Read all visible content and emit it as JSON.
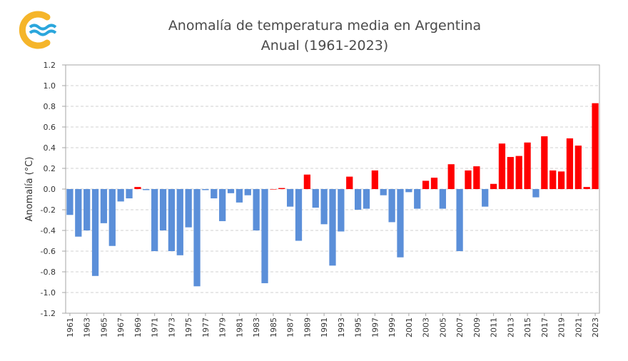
{
  "chart_data": {
    "type": "bar",
    "title": "Anomalía de temperatura media en Argentina",
    "subtitle": "Anual (1961-2023)",
    "xlabel": "",
    "ylabel": "Anomalía (°C)",
    "ylim": [
      -1.2,
      1.2
    ],
    "yticks": [
      1.2,
      1.0,
      0.8,
      0.6,
      0.4,
      0.2,
      0.0,
      -0.2,
      -0.4,
      -0.6,
      -0.8,
      -1.0,
      -1.2
    ],
    "ytick_labels": [
      "1.2",
      "1.0",
      "0.8",
      "0.6",
      "0.4",
      "0.2",
      "0.0",
      "-0.2",
      "-0.4",
      "-0.6",
      "-0.8",
      "-1.0",
      "-1.2"
    ],
    "grid": true,
    "colors": {
      "positive": "#ff0000",
      "negative": "#5b8fd9"
    },
    "categories": [
      "1961",
      "1962",
      "1963",
      "1964",
      "1965",
      "1966",
      "1967",
      "1968",
      "1969",
      "1970",
      "1971",
      "1972",
      "1973",
      "1974",
      "1975",
      "1976",
      "1977",
      "1978",
      "1979",
      "1980",
      "1981",
      "1982",
      "1983",
      "1984",
      "1985",
      "1986",
      "1987",
      "1988",
      "1989",
      "1990",
      "1991",
      "1992",
      "1993",
      "1994",
      "1995",
      "1996",
      "1997",
      "1998",
      "1999",
      "2000",
      "2001",
      "2002",
      "2003",
      "2004",
      "2005",
      "2006",
      "2007",
      "2008",
      "2009",
      "2010",
      "2011",
      "2012",
      "2013",
      "2014",
      "2015",
      "2016",
      "2017",
      "2018",
      "2019",
      "2020",
      "2021",
      "2022",
      "2023"
    ],
    "tick_labels": [
      "1961",
      "1963",
      "1965",
      "1967",
      "1969",
      "1971",
      "1973",
      "1975",
      "1977",
      "1979",
      "1981",
      "1983",
      "1985",
      "1987",
      "1989",
      "1991",
      "1993",
      "1995",
      "1997",
      "1999",
      "2001",
      "2003",
      "2005",
      "2007",
      "2009",
      "2011",
      "2013",
      "2015",
      "2017",
      "2019",
      "2021",
      "2023"
    ],
    "values": [
      -0.25,
      -0.46,
      -0.4,
      -0.84,
      -0.33,
      -0.55,
      -0.12,
      -0.09,
      0.02,
      -0.01,
      -0.6,
      -0.4,
      -0.6,
      -0.64,
      -0.37,
      -0.94,
      -0.01,
      -0.09,
      -0.31,
      -0.04,
      -0.13,
      -0.06,
      -0.4,
      -0.91,
      0.0,
      0.01,
      -0.17,
      -0.5,
      0.14,
      -0.18,
      -0.34,
      -0.74,
      -0.41,
      0.12,
      -0.2,
      -0.19,
      0.18,
      -0.06,
      -0.32,
      -0.66,
      -0.03,
      -0.19,
      0.08,
      0.11,
      -0.19,
      0.24,
      -0.6,
      0.18,
      0.22,
      -0.17,
      0.05,
      0.44,
      0.31,
      0.32,
      0.45,
      -0.08,
      0.51,
      0.18,
      0.17,
      0.49,
      0.42,
      0.02,
      0.83
    ]
  }
}
